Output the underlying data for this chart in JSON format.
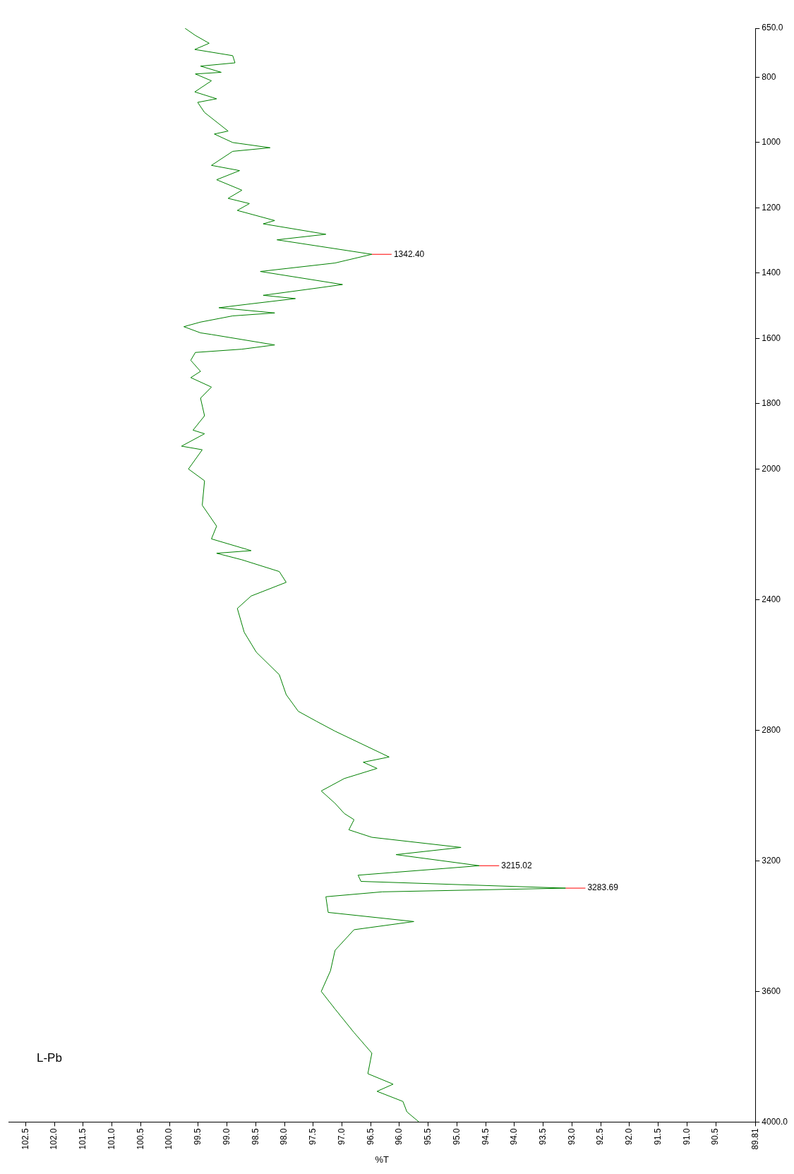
{
  "chart_data": {
    "type": "line",
    "title": "L-Pb",
    "xlabel": "%T",
    "color": "#008000",
    "marker": "none",
    "grid": false,
    "legend": false,
    "xlim": [
      102.8,
      89.81
    ],
    "xticks": [
      102.5,
      {
        "value": 102,
        "label": "102.0"
      },
      101.5,
      {
        "value": 101,
        "label": "101.0"
      },
      100.5,
      {
        "value": 100,
        "label": "100.0"
      },
      99.5,
      {
        "value": 99,
        "label": "99.0"
      },
      98.5,
      {
        "value": 98,
        "label": "98.0"
      },
      97.5,
      {
        "value": 97,
        "label": "97.0"
      },
      96.5,
      {
        "value": 96,
        "label": "96.0"
      },
      95.5,
      {
        "value": 95,
        "label": "95.0"
      },
      94.5,
      {
        "value": 94,
        "label": "94.0"
      },
      93.5,
      {
        "value": 93,
        "label": "93.0"
      },
      92.5,
      {
        "value": 92,
        "label": "92.0"
      },
      91.5,
      {
        "value": 91,
        "label": "91.0"
      },
      90.5,
      89.81
    ],
    "ylim": [
      4000,
      650
    ],
    "yticks": [
      {
        "value": 4000,
        "label": "4000.0"
      },
      3600,
      3200,
      2800,
      2400,
      2000,
      1800,
      1600,
      1400,
      1200,
      1000,
      800,
      {
        "value": 650,
        "label": "650.0"
      }
    ],
    "x": [
      99.73,
      99.55,
      99.31,
      99.56,
      98.9,
      98.86,
      99.46,
      99.1,
      99.55,
      99.27,
      99.56,
      99.18,
      99.51,
      99.39,
      98.98,
      99.22,
      98.9,
      98.25,
      98.9,
      99.27,
      98.78,
      99.18,
      98.74,
      98.98,
      98.61,
      98.82,
      98.17,
      98.37,
      97.28,
      98.13,
      96.48,
      97.12,
      98.42,
      96.99,
      97.4,
      98.37,
      97.81,
      98.58,
      99.14,
      98.17,
      98.9,
      99.46,
      99.75,
      99.46,
      99.27,
      98.17,
      98.74,
      99.55,
      99.63,
      99.46,
      99.63,
      99.27,
      99.46,
      99.39,
      99.59,
      99.39,
      99.79,
      99.43,
      99.67,
      99.39,
      99.43,
      99.18,
      99.27,
      98.58,
      99.18,
      98.74,
      98.09,
      97.97,
      98.58,
      98.82,
      98.7,
      98.49,
      98.09,
      97.97,
      97.76,
      97.44,
      97.12,
      96.18,
      96.63,
      96.39,
      96.96,
      97.36,
      97.12,
      96.96,
      96.79,
      96.88,
      96.48,
      94.93,
      96.06,
      94.61,
      96.72,
      96.67,
      93.11,
      96.3,
      97.28,
      97.24,
      95.75,
      96.79,
      97.12,
      97.2,
      97.36,
      97.12,
      96.79,
      96.48,
      96.55,
      96.11,
      96.39,
      95.94,
      95.87,
      95.66
    ],
    "values": [
      650,
      672,
      696,
      715,
      734,
      756,
      766,
      785,
      790,
      811,
      845,
      866,
      877,
      908,
      965,
      974,
      1000,
      1016,
      1027,
      1070,
      1086,
      1114,
      1146,
      1171,
      1187,
      1208,
      1239,
      1249,
      1281,
      1298,
      1342.4,
      1369,
      1395,
      1435,
      1445,
      1468,
      1478,
      1494,
      1506,
      1522,
      1531,
      1550,
      1564,
      1583,
      1588,
      1620,
      1633,
      1643,
      1667,
      1701,
      1720,
      1749,
      1783,
      1837,
      1881,
      1892,
      1930,
      1941,
      2000,
      2036,
      2111,
      2175,
      2214,
      2250,
      2258,
      2278,
      2314,
      2347,
      2389,
      2427,
      2500,
      2561,
      2630,
      2691,
      2742,
      2773,
      2803,
      2882,
      2898,
      2917,
      2948,
      2986,
      3024,
      3055,
      3074,
      3105,
      3128,
      3159,
      3181,
      3215.02,
      3244,
      3263,
      3283.69,
      3295,
      3310,
      3358,
      3386,
      3411,
      3474,
      3537,
      3600,
      3654,
      3726,
      3789,
      3852,
      3884,
      3906,
      3937,
      3969,
      4000
    ],
    "annotations": [
      {
        "text": "1342.40",
        "x": 96.48,
        "y": 1342.4
      },
      {
        "text": "3215.02",
        "x": 94.61,
        "y": 3215.02
      },
      {
        "text": "3283.69",
        "x": 93.11,
        "y": 3283.69
      }
    ]
  }
}
